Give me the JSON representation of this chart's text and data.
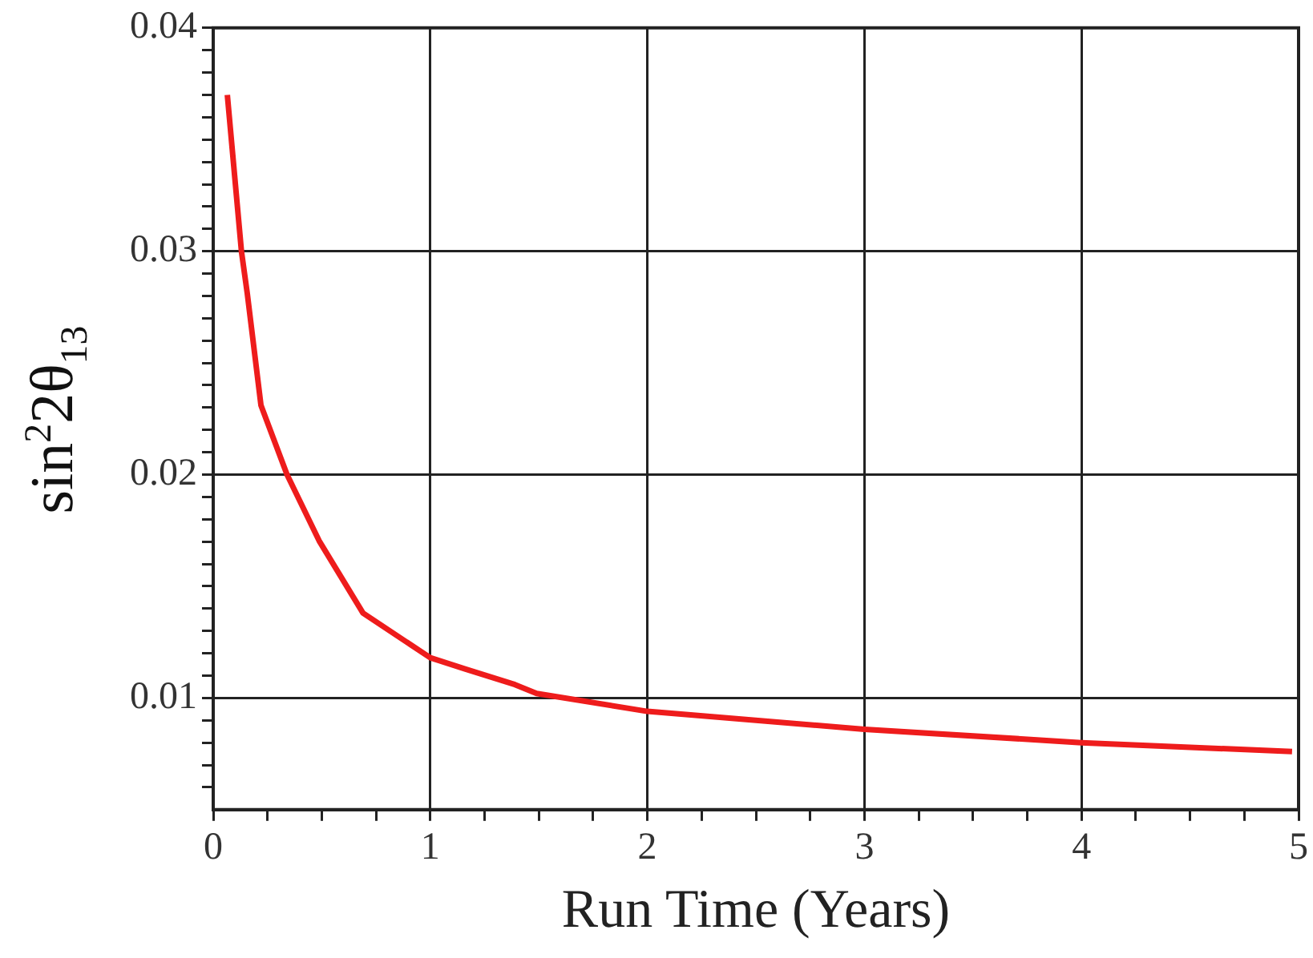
{
  "chart_data": {
    "type": "line",
    "xlabel": "Run Time (Years)",
    "ylabel": "sin$^{2}$2θ$_{13}$",
    "series": [
      {
        "color": "#ee1c1c",
        "x": [
          0.065,
          0.13,
          0.157,
          0.22,
          0.34,
          0.49,
          0.69,
          1.0,
          1.16,
          1.39,
          1.49,
          2.0,
          3.0,
          4.0,
          4.97
        ],
        "values": [
          0.037,
          0.03,
          0.0281,
          0.0231,
          0.02,
          0.017,
          0.0138,
          0.0118,
          0.0113,
          0.0106,
          0.0102,
          0.0094,
          0.0086,
          0.008,
          0.0076
        ]
      }
    ],
    "xlim": [
      0,
      5
    ],
    "xticks": [
      0,
      {
        "value": 0.25,
        "label": null
      },
      {
        "value": 0.5,
        "label": null
      },
      {
        "value": 0.75,
        "label": null
      },
      1,
      {
        "value": 1.25,
        "label": null
      },
      {
        "value": 1.5,
        "label": null
      },
      {
        "value": 1.75,
        "label": null
      },
      2,
      {
        "value": 2.25,
        "label": null
      },
      {
        "value": 2.5,
        "label": null
      },
      {
        "value": 2.75,
        "label": null
      },
      3,
      {
        "value": 3.25,
        "label": null
      },
      {
        "value": 3.5,
        "label": null
      },
      {
        "value": 3.75,
        "label": null
      },
      4,
      {
        "value": 4.25,
        "label": null
      },
      {
        "value": 4.5,
        "label": null
      },
      {
        "value": 4.75,
        "label": null
      },
      5
    ],
    "ylim": [
      0.005,
      0.04
    ],
    "yticks": [
      {
        "value": 0.006,
        "label": null
      },
      {
        "value": 0.007,
        "label": null
      },
      {
        "value": 0.008,
        "label": null
      },
      {
        "value": 0.009,
        "label": null
      },
      0.01,
      {
        "value": 0.011,
        "label": null
      },
      {
        "value": 0.012,
        "label": null
      },
      {
        "value": 0.013,
        "label": null
      },
      {
        "value": 0.014,
        "label": null
      },
      {
        "value": 0.015,
        "label": null
      },
      {
        "value": 0.016,
        "label": null
      },
      {
        "value": 0.017,
        "label": null
      },
      {
        "value": 0.018,
        "label": null
      },
      {
        "value": 0.019,
        "label": null
      },
      0.02,
      {
        "value": 0.021,
        "label": null
      },
      {
        "value": 0.022,
        "label": null
      },
      {
        "value": 0.023,
        "label": null
      },
      {
        "value": 0.024,
        "label": null
      },
      {
        "value": 0.025,
        "label": null
      },
      {
        "value": 0.026,
        "label": null
      },
      {
        "value": 0.027,
        "label": null
      },
      {
        "value": 0.028,
        "label": null
      },
      {
        "value": 0.029,
        "label": null
      },
      0.03,
      {
        "value": 0.031,
        "label": null
      },
      {
        "value": 0.032,
        "label": null
      },
      {
        "value": 0.033,
        "label": null
      },
      {
        "value": 0.034,
        "label": null
      },
      {
        "value": 0.035,
        "label": null
      },
      {
        "value": 0.036,
        "label": null
      },
      {
        "value": 0.037,
        "label": null
      },
      {
        "value": 0.038,
        "label": null
      },
      {
        "value": 0.039,
        "label": null
      },
      0.04
    ],
    "grid": true,
    "legend": false,
    "marker": "none",
    "line_style": "solid"
  }
}
